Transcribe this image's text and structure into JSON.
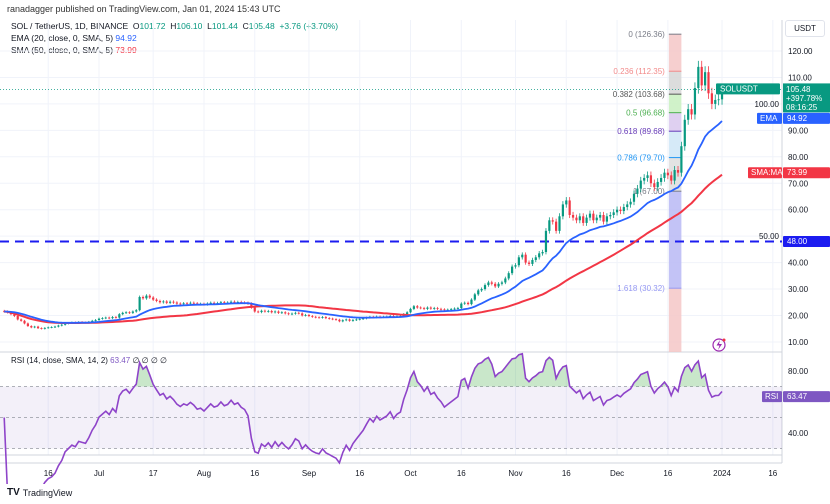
{
  "header": {
    "published": "ranadagger published on TradingView.com, Jan 01, 2024 15:43 UTC",
    "symbol": "SOL / TetherUS, 1D, BINANCE",
    "open_label": "O",
    "open": "101.72",
    "high_label": "H",
    "high": "106.10",
    "low_label": "L",
    "low": "101.44",
    "close_label": "C",
    "close": "105.48",
    "change": "+3.76 (+3.70%)",
    "ema_label": "EMA (20, close, 0, SMA, 5)",
    "ema_value": "94.92",
    "sma_label": "SMA (50, close, 0, SMA, 5)",
    "sma_value": "73.99"
  },
  "rsi_legend": {
    "label": "RSI (14, close, SMA, 14, 2)",
    "value": "63.47",
    "extra": "∅ ∅ ∅ ∅"
  },
  "currency": "USDT",
  "badges": {
    "symbol": "SOLUSDT",
    "price": "105.48",
    "change": "+397.78%",
    "countdown": "08:16:25",
    "ema_name": "EMA",
    "ema": "94.92",
    "sma_name": "SMA:MA",
    "sma": "73.99",
    "support": "48.00",
    "rsi_name": "RSI",
    "rsi": "63.47"
  },
  "footer": {
    "logo": "TV",
    "brand": "TradingView"
  },
  "colors": {
    "up": "#089981",
    "down": "#f23645",
    "ema": "#2962ff",
    "sma": "#f23645",
    "support": "#1c1cf0",
    "rsi": "#8e44c9"
  },
  "chart_data": {
    "type": "candlestick",
    "y_ticks": [
      "120.00",
      "110.00",
      "100.00",
      "90.00",
      "80.00",
      "70.00",
      "60.00",
      "50.00",
      "40.00",
      "30.00",
      "20.00",
      "10.00"
    ],
    "ylim": [
      5,
      131
    ],
    "support_level": 48.0,
    "x_ticks": [
      {
        "label": "16",
        "date": "2023-06-16"
      },
      {
        "label": "Jul",
        "date": "2023-07-01"
      },
      {
        "label": "17",
        "date": "2023-07-17"
      },
      {
        "label": "Aug",
        "date": "2023-08-01"
      },
      {
        "label": "16",
        "date": "2023-08-16"
      },
      {
        "label": "Sep",
        "date": "2023-09-01"
      },
      {
        "label": "16",
        "date": "2023-09-16"
      },
      {
        "label": "Oct",
        "date": "2023-10-01"
      },
      {
        "label": "16",
        "date": "2023-10-16"
      },
      {
        "label": "Nov",
        "date": "2023-11-01"
      },
      {
        "label": "16",
        "date": "2023-11-16"
      },
      {
        "label": "Dec",
        "date": "2023-12-01"
      },
      {
        "label": "16",
        "date": "2023-12-16"
      },
      {
        "label": "2024",
        "date": "2024-01-01"
      },
      {
        "label": "16",
        "date": "2024-01-16"
      }
    ],
    "closes_by_month": [
      {
        "month": "2023-06",
        "first_day": 3,
        "close": [
          21.5,
          21.2,
          20.5,
          19.8,
          18.5,
          18.0,
          17.0,
          16.0,
          15.5,
          15.8,
          15.2,
          15.0,
          15.3,
          15.5,
          15.6,
          15.8,
          16.2,
          16.5,
          17.0,
          17.2,
          17.4,
          17.2,
          17.5,
          17.4,
          17.3,
          17.6,
          18.0,
          18.3
        ]
      },
      {
        "month": "2023-07",
        "first_day": 1,
        "close": [
          18.8,
          19.0,
          19.2,
          19.0,
          19.4,
          19.2,
          20.5,
          21.0,
          21.2,
          21.0,
          21.5,
          22.0,
          27.0,
          26.5,
          27.5,
          26.8,
          26.0,
          25.5,
          25.0,
          25.3,
          24.8,
          25.2,
          24.9,
          24.5,
          24.3,
          24.6,
          24.5,
          24.8,
          24.6,
          24.3,
          24.4
        ]
      },
      {
        "month": "2023-08",
        "first_day": 1,
        "close": [
          24.2,
          24.5,
          24.8,
          24.6,
          24.7,
          25.0,
          24.8,
          24.9,
          25.2,
          25.0,
          25.1,
          24.9,
          24.8,
          24.5,
          23.0,
          21.5,
          21.3,
          21.8,
          21.5,
          21.7,
          21.2,
          21.5,
          21.0,
          21.2,
          20.8,
          20.5,
          20.7,
          21.0,
          20.8,
          20.0,
          20.2
        ]
      },
      {
        "month": "2023-09",
        "first_day": 1,
        "close": [
          19.8,
          19.5,
          19.3,
          19.2,
          19.4,
          19.0,
          18.8,
          18.6,
          18.4,
          17.8,
          18.2,
          18.5,
          18.0,
          18.3,
          18.5,
          18.7,
          18.9,
          19.2,
          19.5,
          19.3,
          19.6,
          19.4,
          19.5,
          19.6,
          19.8,
          19.5,
          19.7,
          19.8,
          20.5,
          21.2
        ]
      },
      {
        "month": "2023-10",
        "first_day": 1,
        "close": [
          22.5,
          23.5,
          23.0,
          22.8,
          22.5,
          23.0,
          22.6,
          22.8,
          22.5,
          22.3,
          22.0,
          22.2,
          22.4,
          22.6,
          22.8,
          24.5,
          24.8,
          24.3,
          26.0,
          28.0,
          29.5,
          30.0,
          31.5,
          32.5,
          32.0,
          31.0,
          32.0,
          32.5,
          34.0,
          36.0,
          38.5
        ]
      },
      {
        "month": "2023-11",
        "first_day": 1,
        "close": [
          39.0,
          42.0,
          43.0,
          40.0,
          39.5,
          41.0,
          42.0,
          43.5,
          44.0,
          52.0,
          56.0,
          55.5,
          52.0,
          57.5,
          62.0,
          63.5,
          58.0,
          57.0,
          56.0,
          57.5,
          55.0,
          57.0,
          58.5,
          56.0,
          57.0,
          58.0,
          55.5,
          57.5,
          58.0,
          59.0
        ]
      },
      {
        "month": "2023-12",
        "first_day": 1,
        "close": [
          60.0,
          59.5,
          61.0,
          62.0,
          63.0,
          66.0,
          68.0,
          71.0,
          72.0,
          73.0,
          70.0,
          68.5,
          70.5,
          72.0,
          74.0,
          73.0,
          71.0,
          75.0,
          74.0,
          84.0,
          94.0,
          98.0,
          96.0,
          106.0,
          114.0,
          107.0,
          112.0,
          104.0,
          100.0,
          101.5,
          101.72
        ]
      },
      {
        "month": "2024-01",
        "first_day": 1,
        "close": [
          105.48
        ]
      }
    ],
    "fib_retracement": {
      "date_from": "2023-12-16",
      "date_to": "2023-12-20",
      "levels": [
        {
          "ratio": 0,
          "price": 126.36,
          "label": "0 (126.36)",
          "color": "#787b86",
          "zone": "#f4c7c7"
        },
        {
          "ratio": 0.236,
          "price": 112.35,
          "label": "0.236 (112.35)",
          "color": "#f28b8b",
          "zone": "#d6d6d6"
        },
        {
          "ratio": 0.382,
          "price": 103.68,
          "label": "0.382 (103.68)",
          "color": "#555555",
          "zone": "#c8f0c0"
        },
        {
          "ratio": 0.5,
          "price": 96.68,
          "label": "0.5 (96.68)",
          "color": "#4caf50",
          "zone": "#d9c8ef"
        },
        {
          "ratio": 0.618,
          "price": 89.68,
          "label": "0.618 (89.68)",
          "color": "#673ab7",
          "zone": "#cfe6f7"
        },
        {
          "ratio": 0.786,
          "price": 79.7,
          "label": "0.786 (79.70)",
          "color": "#2196f3",
          "zone": "#dedede"
        },
        {
          "ratio": 1,
          "price": 67.0,
          "label": "1 (67.00)",
          "color": "#787b86",
          "zone": "#b8b8f4"
        },
        {
          "ratio": 1.618,
          "price": 30.32,
          "label": "1.618 (30.32)",
          "color": "#9598f2",
          "zone": "#f4c7c7"
        }
      ]
    },
    "indicators": {
      "ema_period": 20,
      "sma_period": 50,
      "rsi_period": 14
    },
    "rsi": {
      "y_ticks": [
        "80.00",
        "40.00"
      ],
      "ylim": [
        18,
        92
      ],
      "bands": [
        70,
        50,
        30
      ]
    }
  }
}
